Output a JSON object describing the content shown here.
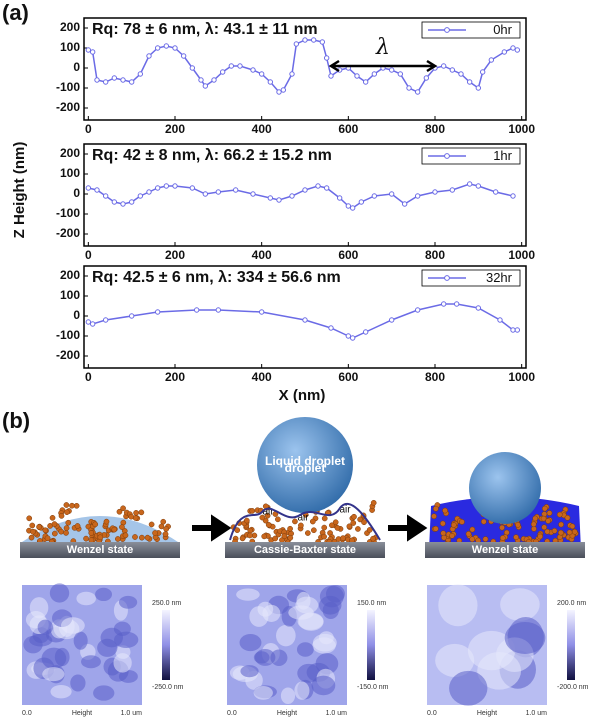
{
  "figure": {
    "panel_a": "(a)",
    "panel_b": "(b)",
    "y_label": "Z Height (nm)",
    "x_label": "X (nm)"
  },
  "chart_data": [
    {
      "type": "line",
      "title": "Rq: 78 ± 6 nm, λ:  43.1 ± 11 nm",
      "annotation": "λ",
      "x": [
        0,
        10,
        20,
        40,
        60,
        80,
        100,
        120,
        140,
        160,
        180,
        200,
        220,
        240,
        260,
        270,
        290,
        310,
        330,
        350,
        380,
        400,
        420,
        440,
        450,
        470,
        480,
        500,
        520,
        540,
        550,
        560,
        580,
        600,
        620,
        640,
        660,
        680,
        700,
        720,
        740,
        760,
        780,
        800,
        820,
        840,
        860,
        880,
        900,
        910,
        930,
        960,
        980,
        990
      ],
      "series": [
        {
          "name": "0hr",
          "color": "#6b6be6",
          "values": [
            90,
            80,
            -60,
            -70,
            -50,
            -60,
            -70,
            -30,
            60,
            100,
            110,
            100,
            60,
            0,
            -60,
            -90,
            -60,
            -20,
            10,
            10,
            -10,
            -30,
            -70,
            -120,
            -110,
            -30,
            120,
            140,
            140,
            130,
            50,
            -40,
            -10,
            0,
            -40,
            -70,
            -30,
            0,
            -10,
            -30,
            -100,
            -120,
            -50,
            0,
            10,
            -10,
            -30,
            -70,
            -100,
            -20,
            40,
            80,
            100,
            90
          ]
        }
      ],
      "xlim": [
        -10,
        1010
      ],
      "xticks": [
        0,
        200,
        400,
        600,
        800,
        1000
      ],
      "ylim": [
        -260,
        250
      ],
      "yticks": [
        -200,
        -100,
        0,
        100,
        200
      ],
      "legend": "upper right"
    },
    {
      "type": "line",
      "title": "Rq: 42 ± 8 nm, λ:  66.2 ± 15.2 nm",
      "x": [
        0,
        20,
        40,
        60,
        80,
        100,
        120,
        140,
        160,
        180,
        200,
        240,
        270,
        300,
        340,
        380,
        420,
        440,
        470,
        500,
        530,
        550,
        580,
        600,
        610,
        630,
        660,
        700,
        730,
        760,
        800,
        840,
        880,
        900,
        940,
        980
      ],
      "series": [
        {
          "name": "1hr",
          "color": "#6b6be6",
          "values": [
            30,
            20,
            -10,
            -40,
            -50,
            -40,
            -10,
            10,
            30,
            40,
            40,
            30,
            0,
            10,
            20,
            0,
            -20,
            -30,
            -10,
            20,
            40,
            30,
            -20,
            -60,
            -70,
            -40,
            -10,
            0,
            -50,
            -10,
            10,
            20,
            50,
            40,
            10,
            -10
          ]
        }
      ],
      "xlim": [
        -10,
        1010
      ],
      "xticks": [
        0,
        200,
        400,
        600,
        800,
        1000
      ],
      "ylim": [
        -260,
        250
      ],
      "yticks": [
        -200,
        -100,
        0,
        100,
        200
      ],
      "legend": "upper right"
    },
    {
      "type": "line",
      "title": "Rq: 42.5 ± 6 nm, λ:  334 ± 56.6 nm",
      "x": [
        0,
        10,
        40,
        100,
        160,
        250,
        300,
        400,
        500,
        560,
        600,
        610,
        640,
        700,
        760,
        820,
        850,
        900,
        950,
        980,
        990
      ],
      "series": [
        {
          "name": "32hr",
          "color": "#6b6be6",
          "values": [
            -30,
            -40,
            -20,
            0,
            20,
            30,
            30,
            20,
            -20,
            -60,
            -100,
            -110,
            -80,
            -20,
            30,
            60,
            60,
            40,
            -20,
            -70,
            -70
          ]
        }
      ],
      "xlim": [
        -10,
        1010
      ],
      "xticks": [
        0,
        200,
        400,
        600,
        800,
        1000
      ],
      "ylim": [
        -260,
        250
      ],
      "yticks": [
        -200,
        -100,
        0,
        100,
        200
      ],
      "legend": "upper right"
    }
  ],
  "panel_b": {
    "droplet": "Liquid droplet",
    "air": [
      "air",
      "air",
      "air"
    ],
    "stages": [
      {
        "state": "Wenzel state",
        "scale_max": "250.0 nm",
        "scale_min": "-250.0 nm",
        "axis_start": "0.0",
        "axis_label": "Height",
        "axis_end": "1.0 um"
      },
      {
        "state": "Cassie-Baxter state",
        "scale_max": "150.0 nm",
        "scale_min": "-150.0 nm",
        "axis_start": "0.0",
        "axis_label": "Height",
        "axis_end": "1.0 um"
      },
      {
        "state": "Wenzel state",
        "scale_max": "200.0 nm",
        "scale_min": "-200.0 nm",
        "axis_start": "0.0",
        "axis_label": "Height",
        "axis_end": "1.0 um"
      }
    ]
  }
}
